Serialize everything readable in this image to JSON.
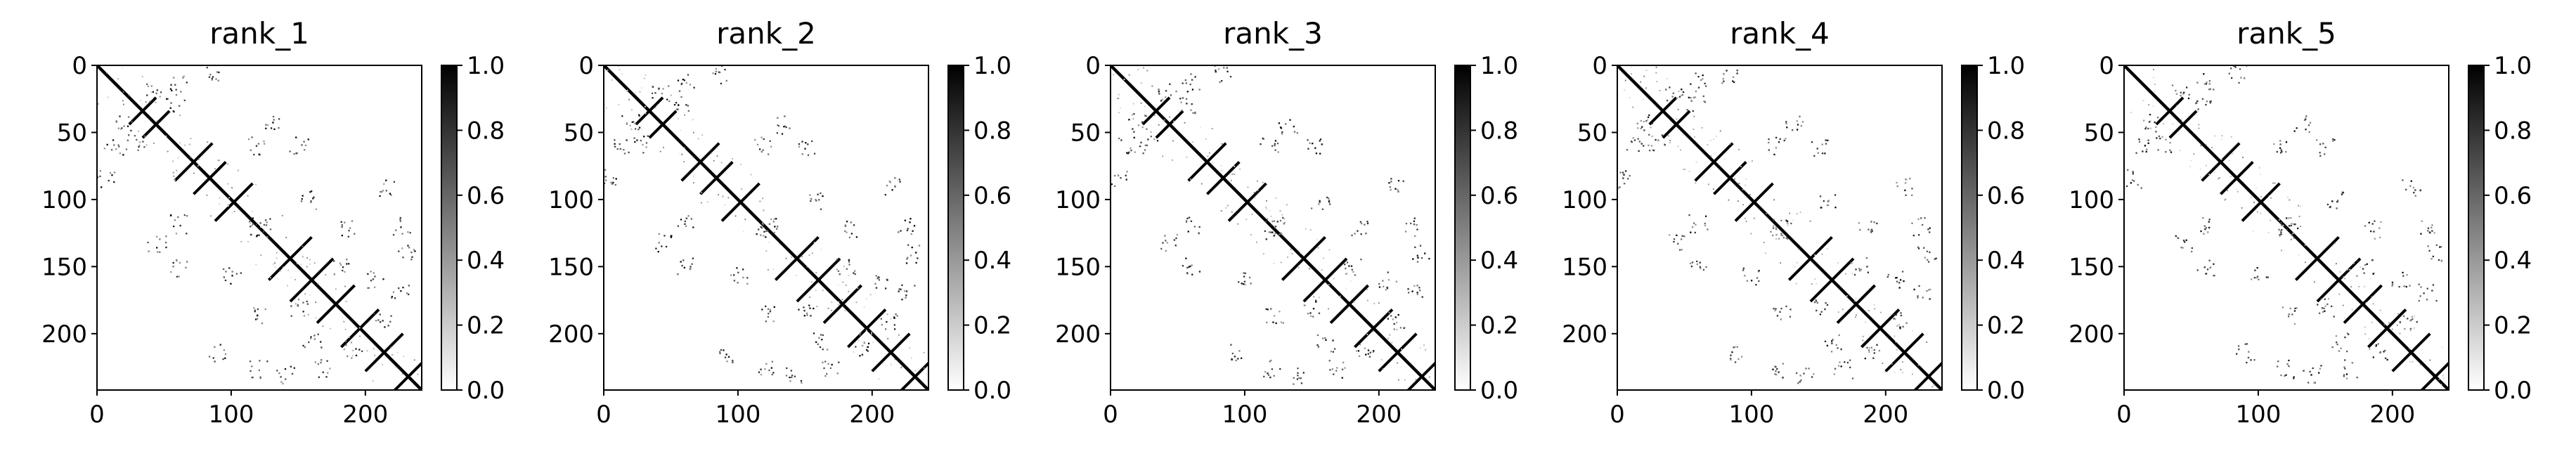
{
  "chart_data": [
    {
      "type": "heatmap",
      "title": "rank_1",
      "matrix_size": 242,
      "xlim": [
        0,
        242
      ],
      "ylim": [
        242,
        0
      ],
      "xticks": [
        "0",
        "100",
        "200"
      ],
      "xtick_values": [
        0,
        100,
        200
      ],
      "yticks": [
        "0",
        "50",
        "100",
        "150",
        "200"
      ],
      "ytick_values": [
        0,
        50,
        100,
        150,
        200
      ],
      "colorbar": {
        "min": 0.0,
        "max": 1.0,
        "cmap": "Greys",
        "ticks": [
          "0.0",
          "0.2",
          "0.4",
          "0.6",
          "0.8",
          "1.0"
        ],
        "tick_values": [
          0.0,
          0.2,
          0.4,
          0.6,
          0.8,
          1.0
        ]
      }
    },
    {
      "type": "heatmap",
      "title": "rank_2",
      "matrix_size": 242,
      "xlim": [
        0,
        242
      ],
      "ylim": [
        242,
        0
      ],
      "xticks": [
        "0",
        "100",
        "200"
      ],
      "xtick_values": [
        0,
        100,
        200
      ],
      "yticks": [
        "0",
        "50",
        "100",
        "150",
        "200"
      ],
      "ytick_values": [
        0,
        50,
        100,
        150,
        200
      ],
      "colorbar": {
        "min": 0.0,
        "max": 1.0,
        "cmap": "Greys",
        "ticks": [
          "0.0",
          "0.2",
          "0.4",
          "0.6",
          "0.8",
          "1.0"
        ],
        "tick_values": [
          0.0,
          0.2,
          0.4,
          0.6,
          0.8,
          1.0
        ]
      }
    },
    {
      "type": "heatmap",
      "title": "rank_3",
      "matrix_size": 242,
      "xlim": [
        0,
        242
      ],
      "ylim": [
        242,
        0
      ],
      "xticks": [
        "0",
        "100",
        "200"
      ],
      "xtick_values": [
        0,
        100,
        200
      ],
      "yticks": [
        "0",
        "50",
        "100",
        "150",
        "200"
      ],
      "ytick_values": [
        0,
        50,
        100,
        150,
        200
      ],
      "colorbar": {
        "min": 0.0,
        "max": 1.0,
        "cmap": "Greys",
        "ticks": [
          "0.0",
          "0.2",
          "0.4",
          "0.6",
          "0.8",
          "1.0"
        ],
        "tick_values": [
          0.0,
          0.2,
          0.4,
          0.6,
          0.8,
          1.0
        ]
      }
    },
    {
      "type": "heatmap",
      "title": "rank_4",
      "matrix_size": 242,
      "xlim": [
        0,
        242
      ],
      "ylim": [
        242,
        0
      ],
      "xticks": [
        "0",
        "100",
        "200"
      ],
      "xtick_values": [
        0,
        100,
        200
      ],
      "yticks": [
        "0",
        "50",
        "100",
        "150",
        "200"
      ],
      "ytick_values": [
        0,
        50,
        100,
        150,
        200
      ],
      "colorbar": {
        "min": 0.0,
        "max": 1.0,
        "cmap": "Greys",
        "ticks": [
          "0.0",
          "0.2",
          "0.4",
          "0.6",
          "0.8",
          "1.0"
        ],
        "tick_values": [
          0.0,
          0.2,
          0.4,
          0.6,
          0.8,
          1.0
        ]
      }
    },
    {
      "type": "heatmap",
      "title": "rank_5",
      "matrix_size": 242,
      "xlim": [
        0,
        242
      ],
      "ylim": [
        242,
        0
      ],
      "xticks": [
        "0",
        "100",
        "200"
      ],
      "xtick_values": [
        0,
        100,
        200
      ],
      "yticks": [
        "0",
        "50",
        "100",
        "150",
        "200"
      ],
      "ytick_values": [
        0,
        50,
        100,
        150,
        200
      ],
      "colorbar": {
        "min": 0.0,
        "max": 1.0,
        "cmap": "Greys",
        "ticks": [
          "0.0",
          "0.2",
          "0.4",
          "0.6",
          "0.8",
          "1.0"
        ],
        "tick_values": [
          0.0,
          0.2,
          0.4,
          0.6,
          0.8,
          1.0
        ]
      }
    }
  ],
  "contact_features": {
    "main_diagonal": [
      0,
      242
    ],
    "antidiagonal_crossings": [
      {
        "center": [
          34,
          34
        ],
        "span": 10
      },
      {
        "center": [
          44,
          44
        ],
        "span": 10
      },
      {
        "center": [
          72,
          72
        ],
        "span": 14
      },
      {
        "center": [
          84,
          84
        ],
        "span": 12
      },
      {
        "center": [
          102,
          102
        ],
        "span": 14
      },
      {
        "center": [
          144,
          144
        ],
        "span": 16
      },
      {
        "center": [
          160,
          160
        ],
        "span": 16
      },
      {
        "center": [
          178,
          178
        ],
        "span": 14
      },
      {
        "center": [
          196,
          196
        ],
        "span": 14
      },
      {
        "center": [
          214,
          214
        ],
        "span": 14
      },
      {
        "center": [
          232,
          232
        ],
        "span": 12
      }
    ],
    "scatter_clusters": [
      {
        "x": 20,
        "y": 42
      },
      {
        "x": 42,
        "y": 20
      },
      {
        "x": 28,
        "y": 58
      },
      {
        "x": 58,
        "y": 28
      },
      {
        "x": 60,
        "y": 12
      },
      {
        "x": 12,
        "y": 60
      },
      {
        "x": 84,
        "y": 6
      },
      {
        "x": 6,
        "y": 84
      },
      {
        "x": 118,
        "y": 60
      },
      {
        "x": 60,
        "y": 118
      },
      {
        "x": 122,
        "y": 120
      },
      {
        "x": 120,
        "y": 122
      },
      {
        "x": 150,
        "y": 180
      },
      {
        "x": 180,
        "y": 150
      },
      {
        "x": 186,
        "y": 122
      },
      {
        "x": 122,
        "y": 186
      },
      {
        "x": 214,
        "y": 90
      },
      {
        "x": 90,
        "y": 214
      },
      {
        "x": 226,
        "y": 120
      },
      {
        "x": 120,
        "y": 226
      },
      {
        "x": 226,
        "y": 168
      },
      {
        "x": 168,
        "y": 226
      },
      {
        "x": 44,
        "y": 132
      },
      {
        "x": 132,
        "y": 44
      },
      {
        "x": 190,
        "y": 212
      },
      {
        "x": 212,
        "y": 190
      },
      {
        "x": 230,
        "y": 140
      },
      {
        "x": 140,
        "y": 230
      },
      {
        "x": 160,
        "y": 206
      },
      {
        "x": 206,
        "y": 160
      },
      {
        "x": 100,
        "y": 156
      },
      {
        "x": 156,
        "y": 100
      },
      {
        "x": 150,
        "y": 60
      },
      {
        "x": 60,
        "y": 150
      }
    ]
  }
}
